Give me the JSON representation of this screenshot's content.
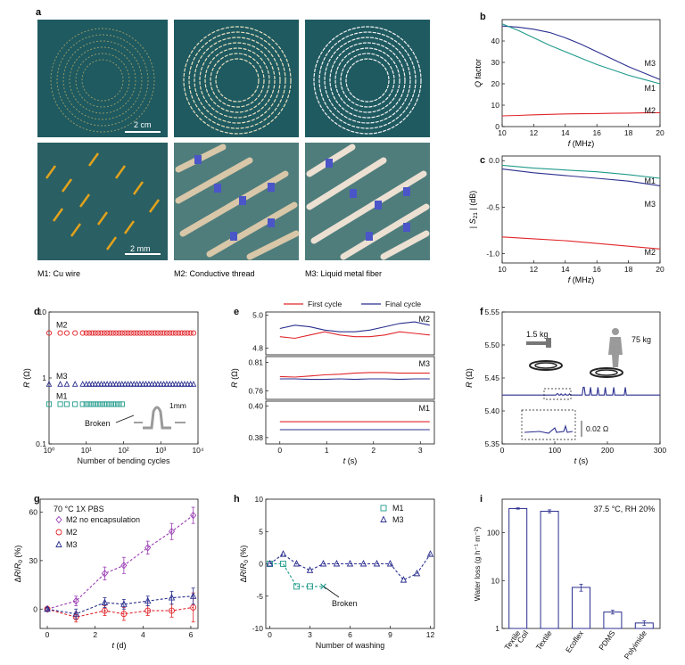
{
  "colors": {
    "red": "#e0262b",
    "blue": "#2b2f8f",
    "teal": "#1f9a8a",
    "purple": "#9b3fb5",
    "gray": "#8a8a8a",
    "fabric": "#1e5a60"
  },
  "panel_a": {
    "letter": "a",
    "captions": [
      "M1: Cu wire",
      "M2: Conductive thread",
      "M3: Liquid metal fiber"
    ],
    "scale_top": "2 cm",
    "scale_bottom": "2 mm"
  },
  "chart_data": [
    {
      "id": "b",
      "type": "line",
      "letter": "b",
      "xlabel": "f (MHz)",
      "ylabel": "Q factor",
      "xlim": [
        10,
        20
      ],
      "ylim": [
        0,
        50
      ],
      "xticks": [
        10,
        12,
        14,
        16,
        18,
        20
      ],
      "yticks": [
        0,
        10,
        20,
        30,
        40
      ],
      "x": [
        10,
        11,
        12,
        13,
        14,
        15,
        16,
        17,
        18,
        19,
        20
      ],
      "series": [
        {
          "name": "M3",
          "color": "#2b2f8f",
          "values": [
            47,
            46.5,
            45.5,
            44,
            41.5,
            38.5,
            35,
            31.5,
            28,
            25,
            22
          ]
        },
        {
          "name": "M1",
          "color": "#1f9a8a",
          "values": [
            48,
            45,
            41.5,
            38,
            35,
            32,
            29,
            26.5,
            24,
            22,
            20
          ]
        },
        {
          "name": "M2",
          "color": "#e0262b",
          "values": [
            5,
            5.2,
            5.5,
            5.7,
            5.9,
            6,
            6.1,
            6.2,
            6.3,
            6.4,
            6.5
          ]
        }
      ]
    },
    {
      "id": "c",
      "type": "line",
      "letter": "c",
      "xlabel": "f (MHz)",
      "ylabel": "|S21| (dB)",
      "xlim": [
        10,
        20
      ],
      "ylim": [
        -1.1,
        0.05
      ],
      "xticks": [
        10,
        12,
        14,
        16,
        18,
        20
      ],
      "yticks": [
        -1.0,
        -0.5,
        0.0
      ],
      "x": [
        10,
        12,
        14,
        16,
        18,
        20
      ],
      "series": [
        {
          "name": "M1",
          "color": "#1f9a8a",
          "values": [
            -0.05,
            -0.08,
            -0.1,
            -0.12,
            -0.15,
            -0.19
          ]
        },
        {
          "name": "M3",
          "color": "#2b2f8f",
          "values": [
            -0.09,
            -0.13,
            -0.16,
            -0.19,
            -0.22,
            -0.27
          ]
        },
        {
          "name": "M2",
          "color": "#e0262b",
          "values": [
            -0.82,
            -0.84,
            -0.86,
            -0.89,
            -0.92,
            -0.95
          ]
        }
      ]
    },
    {
      "id": "d",
      "type": "scatter",
      "letter": "d",
      "xlabel": "Number of bending cycles",
      "ylabel": "R (Ω)",
      "xscale": "log",
      "yscale": "log",
      "xlim": [
        1,
        10000
      ],
      "ylim": [
        0.1,
        10
      ],
      "xticks": [
        1,
        10,
        100,
        1000,
        10000
      ],
      "xtick_labels": [
        "10⁰",
        "10¹",
        "10²",
        "10³",
        "10⁴"
      ],
      "yticks": [
        0.1,
        1,
        10
      ],
      "ytick_labels": [
        "0.1",
        "1",
        "10"
      ],
      "series": [
        {
          "name": "M2",
          "color": "#e0262b",
          "marker": "circle",
          "y": 4.8,
          "xmax": 8000
        },
        {
          "name": "M3",
          "color": "#2b2f8f",
          "marker": "triangle",
          "y": 0.8,
          "xmax": 8000
        },
        {
          "name": "M1",
          "color": "#1f9a8a",
          "marker": "square",
          "y": 0.4,
          "xmax": 100
        }
      ],
      "annotations": [
        "Broken",
        "1mm"
      ]
    },
    {
      "id": "e",
      "type": "line",
      "letter": "e",
      "xlabel": "t (s)",
      "ylabel": "R (Ω)",
      "legend": [
        "First cycle",
        "Final cycle"
      ],
      "xlim": [
        -0.3,
        3.3
      ],
      "xticks": [
        0,
        1,
        2,
        3
      ],
      "subplots": [
        {
          "name": "M2",
          "ylim": [
            4.76,
            5.02
          ],
          "yticks": [
            4.8,
            5.0
          ],
          "ytick_labels": [
            "4.8",
            "5.0"
          ],
          "first": [
            4.87,
            4.86,
            4.88,
            4.9,
            4.88,
            4.87,
            4.87,
            4.88,
            4.9,
            4.89,
            4.88
          ],
          "final": [
            4.92,
            4.94,
            4.93,
            4.91,
            4.9,
            4.9,
            4.91,
            4.93,
            4.95,
            4.96,
            4.94
          ]
        },
        {
          "name": "M3",
          "ylim": [
            0.745,
            0.82
          ],
          "yticks": [
            0.76,
            0.81
          ],
          "ytick_labels": [
            "0.76",
            "0.81"
          ],
          "first": [
            0.785,
            0.784,
            0.786,
            0.788,
            0.789,
            0.791,
            0.792,
            0.792,
            0.791,
            0.791,
            0.791
          ],
          "final": [
            0.781,
            0.781,
            0.78,
            0.78,
            0.781,
            0.78,
            0.781,
            0.781,
            0.78,
            0.781,
            0.781
          ]
        },
        {
          "name": "M1",
          "ylim": [
            0.376,
            0.403
          ],
          "yticks": [
            0.38,
            0.4
          ],
          "ytick_labels": [
            "0.38",
            "0.40"
          ],
          "first": [
            0.39,
            0.39,
            0.39,
            0.39,
            0.39,
            0.39,
            0.39,
            0.39,
            0.39,
            0.39,
            0.39
          ],
          "final": [
            0.385,
            0.385,
            0.385,
            0.385,
            0.385,
            0.385,
            0.385,
            0.385,
            0.385,
            0.385,
            0.385
          ]
        }
      ]
    },
    {
      "id": "f",
      "type": "line",
      "letter": "f",
      "xlabel": "t (s)",
      "ylabel": "R (Ω)",
      "xlim": [
        0,
        300
      ],
      "ylim": [
        5.35,
        5.55
      ],
      "xticks": [
        0,
        100,
        200,
        300
      ],
      "yticks": [
        5.35,
        5.4,
        5.45,
        5.5,
        5.55
      ],
      "ytick_labels": [
        "5.35",
        "5.40",
        "5.45",
        "5.50",
        "5.55"
      ],
      "baseline": 5.424,
      "spikes_small": [
        105,
        112,
        120,
        128
      ],
      "spikes_large": [
        155,
        168,
        182,
        196,
        212,
        234
      ],
      "annotations": [
        "1.5 kg",
        "75 kg",
        "0.02 Ω"
      ]
    },
    {
      "id": "g",
      "type": "scatter",
      "letter": "g",
      "xlabel": "t (d)",
      "ylabel": "ΔR/R0 (%)",
      "title": "70 °C 1X PBS",
      "xlim": [
        -0.3,
        6.3
      ],
      "ylim": [
        -12,
        68
      ],
      "xticks": [
        0,
        2,
        4,
        6
      ],
      "yticks": [
        0,
        30,
        60
      ],
      "x": [
        0,
        1.2,
        2.4,
        3.2,
        4.2,
        5.2,
        6.1
      ],
      "series": [
        {
          "name": "M2 no encapsulation",
          "color": "#9b3fb5",
          "marker": "diamond",
          "values": [
            0,
            5,
            22,
            27,
            38,
            48,
            58
          ],
          "err": [
            1,
            3,
            4,
            5,
            4,
            5,
            5
          ]
        },
        {
          "name": "M2",
          "color": "#e0262b",
          "marker": "circle",
          "values": [
            0,
            -5,
            -1,
            -3,
            -1,
            -1,
            1
          ],
          "err": [
            1,
            3,
            3,
            4,
            3,
            4,
            9
          ]
        },
        {
          "name": "M3",
          "color": "#2b2f8f",
          "marker": "triangle",
          "values": [
            0,
            -3,
            4,
            3,
            5,
            7,
            8
          ],
          "err": [
            1,
            3,
            3,
            3,
            3,
            4,
            5
          ]
        }
      ]
    },
    {
      "id": "h",
      "type": "line",
      "letter": "h",
      "xlabel": "Number of washing",
      "ylabel": "ΔR/R0 (%)",
      "xlim": [
        -0.3,
        12.3
      ],
      "ylim": [
        -10,
        10
      ],
      "xticks": [
        0,
        3,
        6,
        9,
        12
      ],
      "yticks": [
        -10,
        -5,
        0,
        5,
        10
      ],
      "series": [
        {
          "name": "M1",
          "color": "#1f9a8a",
          "marker": "square",
          "x": [
            0,
            1,
            2,
            3,
            4
          ],
          "values": [
            0,
            0,
            -3.5,
            -3.5,
            -3.5
          ]
        },
        {
          "name": "M3",
          "color": "#2b2f8f",
          "marker": "triangle",
          "x": [
            0,
            1,
            2,
            3,
            4,
            5,
            6,
            7,
            8,
            9,
            10,
            11,
            12
          ],
          "values": [
            0,
            1.5,
            0,
            -1,
            0,
            0,
            0,
            0,
            0,
            0,
            -2.5,
            -1.5,
            1.5
          ]
        }
      ],
      "annotations": [
        "Broken"
      ]
    },
    {
      "id": "i",
      "type": "bar",
      "letter": "i",
      "title": "37.5 °C, RH 20%",
      "ylabel": "Water loss (g h⁻¹ m⁻²)",
      "yscale": "log",
      "ylim": [
        1,
        500
      ],
      "yticks": [
        1,
        10,
        100
      ],
      "ytick_labels": [
        "1",
        "10",
        "100"
      ],
      "categories": [
        "Textile + Coil",
        "Textile",
        "Ecoflex",
        "PDMS",
        "Polyimide"
      ],
      "values": [
        320,
        280,
        7.2,
        2.2,
        1.3
      ],
      "err": [
        10,
        20,
        1.2,
        0.2,
        0.15
      ]
    }
  ]
}
